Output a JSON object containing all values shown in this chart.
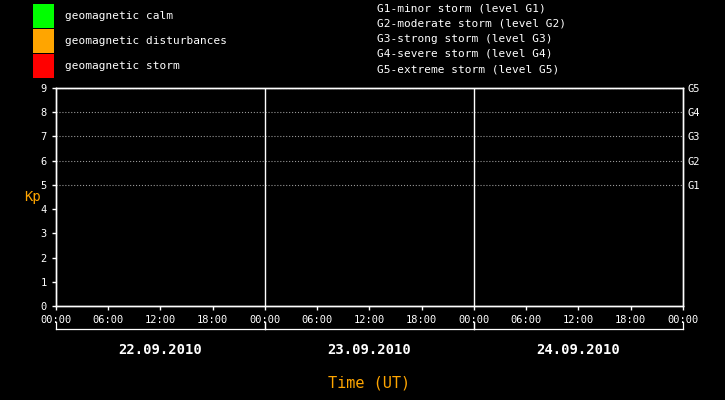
{
  "bg_color": "#000000",
  "plot_bg_color": "#000000",
  "text_color": "#ffffff",
  "orange_color": "#ffa500",
  "title_xlabel": "Time (UT)",
  "ylabel": "Kp",
  "ylim": [
    0,
    9
  ],
  "yticks": [
    0,
    1,
    2,
    3,
    4,
    5,
    6,
    7,
    8,
    9
  ],
  "days": [
    "22.09.2010",
    "23.09.2010",
    "24.09.2010"
  ],
  "g_labels": [
    "G5",
    "G4",
    "G3",
    "G2",
    "G1"
  ],
  "g_yvals": [
    9,
    8,
    7,
    6,
    5
  ],
  "dotted_yvals": [
    5,
    6,
    7,
    8,
    9
  ],
  "legend_items": [
    {
      "label": "geomagnetic calm",
      "color": "#00ff00"
    },
    {
      "label": "geomagnetic disturbances",
      "color": "#ffa500"
    },
    {
      "label": "geomagnetic storm",
      "color": "#ff0000"
    }
  ],
  "right_legend_lines": [
    "G1-minor storm (level G1)",
    "G2-moderate storm (level G2)",
    "G3-strong storm (level G3)",
    "G4-severe storm (level G4)",
    "G5-extreme storm (level G5)"
  ],
  "total_hours": 72,
  "fig_width": 7.25,
  "fig_height": 4.0,
  "fig_dpi": 100
}
